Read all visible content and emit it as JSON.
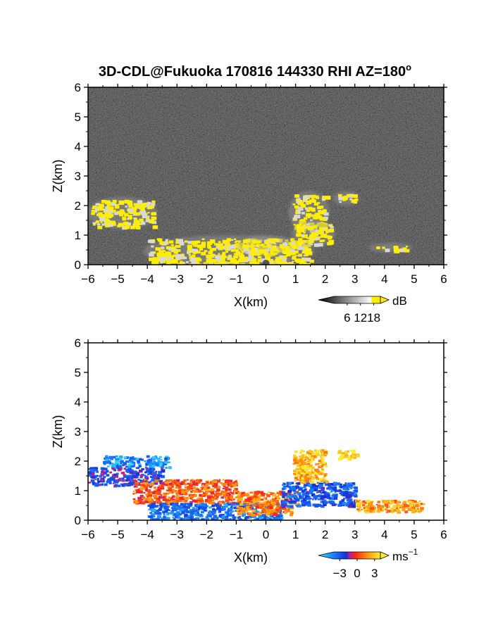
{
  "title": "3D-CDL@Fukuoka 170816 144330 RHI AZ=180",
  "title_superscript": "o",
  "colors": {
    "background": "#ffffff",
    "axis": "#000000",
    "highlight": "#ffee00",
    "panel1_bg": "#141414"
  },
  "chart_data": [
    {
      "type": "heatmap",
      "quantity": "backscatter intensity",
      "xlabel": "X(km)",
      "ylabel": "Z(km)",
      "xlim": [
        -6,
        6
      ],
      "ylim": [
        0,
        6
      ],
      "x_ticks": [
        -6,
        -5,
        -4,
        -3,
        -2,
        -1,
        0,
        1,
        2,
        3,
        4,
        5,
        6
      ],
      "y_ticks": [
        0,
        1,
        2,
        3,
        4,
        5,
        6
      ],
      "grid": false,
      "colorbar": {
        "unit": "dB",
        "tick_values": [
          6,
          12,
          18
        ],
        "tick_labels": [
          "6",
          "12",
          "18"
        ],
        "range": [
          0,
          21
        ],
        "colormap": "grayscale with yellow above 18 dB"
      },
      "features": [
        {
          "name": "left elevated layer",
          "x": [
            -5.9,
            -3.8
          ],
          "z": [
            1.3,
            2.2
          ],
          "level_db": 18
        },
        {
          "name": "near-surface echo",
          "x": [
            -4.0,
            1.5
          ],
          "z": [
            0.0,
            0.9
          ],
          "level_db": 18
        },
        {
          "name": "central plume",
          "x": [
            -0.8,
            0.9
          ],
          "z": [
            0.4,
            0.9
          ],
          "level_db": 18
        },
        {
          "name": "rising plume 1",
          "x": [
            0.9,
            2.0
          ],
          "z": [
            1.2,
            2.4
          ],
          "level_db": 18
        },
        {
          "name": "rising plume 2",
          "x": [
            2.4,
            3.0
          ],
          "z": [
            2.1,
            2.4
          ],
          "level_db": 18
        },
        {
          "name": "right cluster",
          "x": [
            1.0,
            2.2
          ],
          "z": [
            0.7,
            1.4
          ],
          "level_db": 18
        },
        {
          "name": "far echo",
          "x": [
            3.6,
            4.8
          ],
          "z": [
            0.5,
            0.65
          ],
          "level_db": 18
        }
      ]
    },
    {
      "type": "heatmap",
      "quantity": "Doppler velocity",
      "xlabel": "X(km)",
      "ylabel": "Z(km)",
      "xlim": [
        -6,
        6
      ],
      "ylim": [
        0,
        6
      ],
      "x_ticks": [
        -6,
        -5,
        -4,
        -3,
        -2,
        -1,
        0,
        1,
        2,
        3,
        4,
        5,
        6
      ],
      "y_ticks": [
        0,
        1,
        2,
        3,
        4,
        5,
        6
      ],
      "grid": false,
      "colorbar": {
        "unit": "ms",
        "unit_superscript": "−1",
        "tick_values": [
          -3,
          0,
          3
        ],
        "tick_labels": [
          "−3",
          "0",
          "3"
        ],
        "range": [
          -4,
          4
        ],
        "colormap": "cyan-blue-red-orange-yellow"
      },
      "features": [
        {
          "name": "left upper layer",
          "x": [
            -5.5,
            -3.3
          ],
          "z": [
            1.8,
            2.2
          ],
          "velocity": -2.5
        },
        {
          "name": "left lower layer",
          "x": [
            -6.0,
            -3.5
          ],
          "z": [
            1.2,
            1.8
          ],
          "velocity": -1.0
        },
        {
          "name": "sloping band",
          "x": [
            -4.5,
            -1.0
          ],
          "z": [
            0.6,
            1.4
          ],
          "velocity": 1.5
        },
        {
          "name": "near-surface flow",
          "x": [
            -4.0,
            0.5
          ],
          "z": [
            0.0,
            0.6
          ],
          "velocity": -2.0
        },
        {
          "name": "central plume",
          "x": [
            -1.0,
            1.0
          ],
          "z": [
            0.2,
            1.0
          ],
          "velocity": 2.0
        },
        {
          "name": "rising plume 1",
          "x": [
            0.9,
            2.0
          ],
          "z": [
            1.3,
            2.4
          ],
          "velocity": 3.0
        },
        {
          "name": "rising plume 2",
          "x": [
            2.4,
            3.1
          ],
          "z": [
            2.1,
            2.4
          ],
          "velocity": 4.0
        },
        {
          "name": "right cluster",
          "x": [
            0.5,
            3.0
          ],
          "z": [
            0.5,
            1.3
          ],
          "velocity": -1.5
        },
        {
          "name": "far right echo",
          "x": [
            3.0,
            5.3
          ],
          "z": [
            0.3,
            0.7
          ],
          "velocity": 2.5
        }
      ]
    }
  ]
}
